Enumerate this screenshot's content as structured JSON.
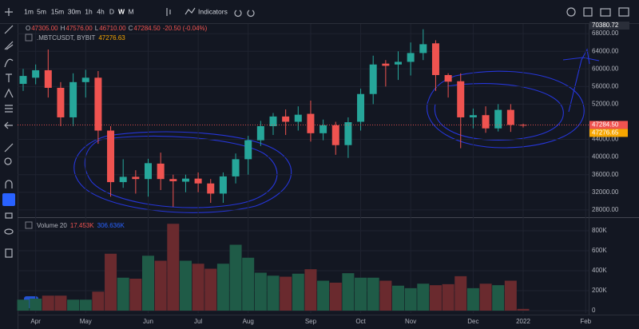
{
  "toolbar": {
    "timeframes": [
      "1m",
      "5m",
      "15m",
      "30m",
      "1h",
      "4h",
      "D",
      "W",
      "M"
    ],
    "indicators": "Indicators"
  },
  "chart_data": {
    "type": "candlestick",
    "symbol": ".MBTCUSDT, BYBIT",
    "symbol_price": "47276.63",
    "ohlc_legend": [
      {
        "key": "O",
        "value": "47305.00"
      },
      {
        "key": "H",
        "value": "47576.00"
      },
      {
        "key": "L",
        "value": "46710.00"
      },
      {
        "key": "C",
        "value": "47284.50"
      }
    ],
    "change": "-20.50 (-0.04%)",
    "top_label": "70380.72",
    "last_price_label": "47284.50",
    "close_label": "47276.65",
    "volume_title": "Volume 20",
    "volume_value": "17.453K",
    "volume_ma": "306.636K",
    "up_color": "#26a69a",
    "down_color": "#ef5350",
    "volume_up_color": "#1f5b47",
    "volume_down_color": "#6a2a2e",
    "categories": [
      null,
      "Apr",
      null,
      null,
      null,
      "May",
      null,
      null,
      null,
      null,
      "Jun",
      null,
      null,
      null,
      "Jul",
      null,
      null,
      null,
      "Aug",
      null,
      null,
      null,
      null,
      "Sep",
      null,
      null,
      null,
      "Oct",
      null,
      null,
      null,
      "Nov",
      null,
      null,
      null,
      null,
      "Dec",
      null,
      null,
      null,
      "2022",
      null,
      null,
      null,
      null,
      "Feb"
    ],
    "open": [
      56600,
      58000,
      59700,
      55700,
      49000,
      57000,
      58000,
      46000,
      34300,
      35500,
      35000,
      38500,
      35000,
      34400,
      35100,
      34000,
      31700,
      35600,
      39500,
      43800,
      47000,
      49200,
      48000,
      49800,
      45400,
      47200,
      42700,
      48000,
      54300,
      61200,
      61000,
      61600,
      63600,
      65800,
      58600,
      57200,
      49000,
      49500,
      46500,
      50700,
      47305,
      null,
      null,
      null,
      null,
      null
    ],
    "high": [
      60000,
      61000,
      64400,
      57000,
      59000,
      59800,
      59500,
      47000,
      39500,
      37000,
      39600,
      41000,
      36000,
      36000,
      36500,
      35000,
      36500,
      40800,
      44800,
      48200,
      50000,
      50800,
      51500,
      52800,
      48500,
      48000,
      49000,
      55500,
      63000,
      62000,
      64000,
      66000,
      69000,
      66500,
      59000,
      59000,
      51000,
      51500,
      52000,
      52000,
      47576,
      null,
      null,
      null,
      null,
      null
    ],
    "low": [
      55000,
      56500,
      53500,
      47000,
      47000,
      53500,
      43000,
      31000,
      33000,
      31700,
      31000,
      32500,
      28700,
      32000,
      32000,
      29600,
      29600,
      34000,
      36000,
      42500,
      45000,
      45000,
      46000,
      43500,
      43800,
      40500,
      39800,
      46000,
      52000,
      56000,
      57500,
      58500,
      62000,
      55000,
      53500,
      42000,
      46500,
      45500,
      45800,
      45700,
      46710,
      null,
      null,
      null,
      null,
      null
    ],
    "close": [
      58400,
      59700,
      55700,
      49000,
      57000,
      58000,
      46000,
      34300,
      35500,
      35000,
      38600,
      35000,
      34500,
      35100,
      34000,
      31700,
      35600,
      39500,
      43800,
      47000,
      49200,
      48000,
      49600,
      45400,
      47200,
      42700,
      47900,
      54300,
      61000,
      60700,
      61600,
      63600,
      65600,
      58600,
      57100,
      49000,
      49500,
      46500,
      50700,
      47300,
      47284.5,
      null,
      null,
      null,
      null,
      null
    ],
    "volume": [
      110000,
      120000,
      150000,
      150000,
      110000,
      110000,
      190000,
      570000,
      330000,
      320000,
      550000,
      500000,
      870000,
      500000,
      470000,
      420000,
      470000,
      660000,
      530000,
      380000,
      350000,
      340000,
      370000,
      415000,
      300000,
      280000,
      375000,
      330000,
      330000,
      300000,
      250000,
      225000,
      270000,
      255000,
      265000,
      345000,
      225000,
      270000,
      255000,
      300000,
      17453,
      null,
      null,
      null,
      null,
      null
    ],
    "ylim": [
      26700,
      70200
    ],
    "yticks": [
      {
        "value": 28000,
        "label": "28000.00"
      },
      {
        "value": 32000,
        "label": "32000.00"
      },
      {
        "value": 36000,
        "label": "36000.00"
      },
      {
        "value": 40000,
        "label": "40000.00"
      },
      {
        "value": 44000,
        "label": "44000.00"
      },
      {
        "value": 52000,
        "label": "52000.00"
      },
      {
        "value": 56000,
        "label": "56000.00"
      },
      {
        "value": 60000,
        "label": "60000.00"
      },
      {
        "value": 64000,
        "label": "64000.00"
      },
      {
        "value": 68000,
        "label": "68000.00"
      }
    ],
    "volume_ylim": [
      -24000,
      920000
    ],
    "volume_yticks": [
      0,
      {
        "value": 200000,
        "label": "200K"
      },
      {
        "value": 400000,
        "label": "400K"
      },
      {
        "value": 600000,
        "label": "600K"
      },
      {
        "value": 800000,
        "label": "800K"
      }
    ],
    "grid": true
  }
}
